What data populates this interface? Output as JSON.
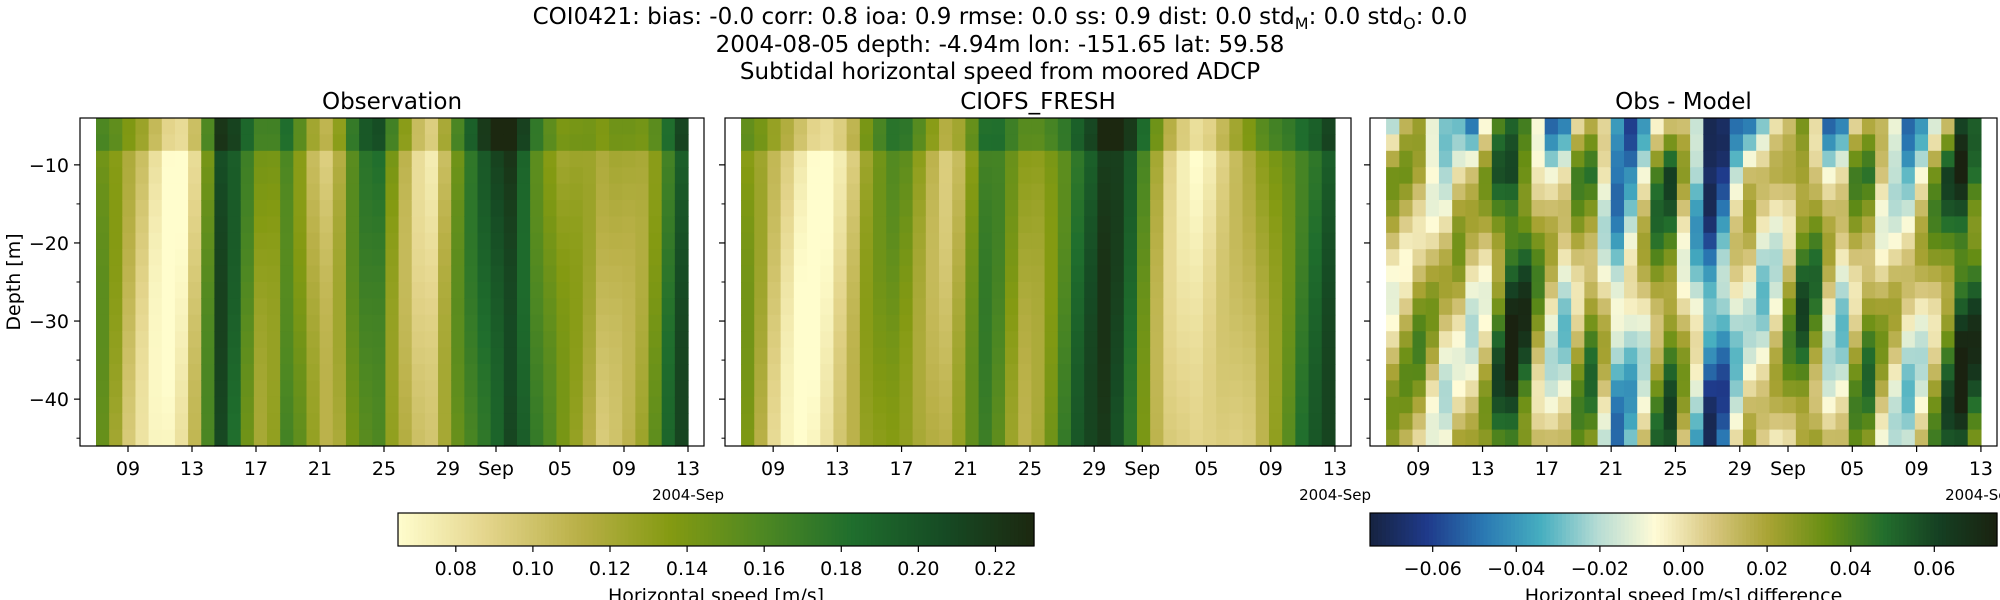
{
  "figure": {
    "title_line1": "COI0421: bias: -0.0  corr: 0.8  ioa: 0.9  rmse: 0.0  ss: 0.9  dist: 0.0  std",
    "title_sub_m": "M",
    "title_mid": ": 0.0  std",
    "title_sub_o": "O",
    "title_end": ": 0.0",
    "title_line2": "2004-08-05 depth: -4.94m lon: -151.65 lat: 59.58",
    "title_line3": "Subtidal horizontal speed from moored ADCP"
  },
  "chart_data": [
    {
      "type": "heatmap",
      "title": "Observation",
      "ylabel": "Depth [m]",
      "xlabel": "",
      "x_start": "2004-08-07",
      "x_end": "2004-09-13",
      "xlim": [
        "2004-08-06",
        "2004-09-14"
      ],
      "ylim": [
        -46,
        -4
      ],
      "x_tick_labels": [
        "09",
        "13",
        "17",
        "21",
        "25",
        "29",
        "Sep",
        "05",
        "09",
        "13"
      ],
      "x_offset_label": "2004-Sep",
      "y_ticks": [
        -10,
        -20,
        -30,
        -40
      ],
      "colormap": "speed",
      "vmin": 0.065,
      "vmax": 0.23,
      "colorbar": "left",
      "column_means": [
        0.14,
        0.12,
        0.1,
        0.09,
        0.08,
        0.075,
        0.08,
        0.1,
        0.15,
        0.2,
        0.18,
        0.15,
        0.13,
        0.14,
        0.17,
        0.15,
        0.12,
        0.1,
        0.11,
        0.14,
        0.16,
        0.17,
        0.14,
        0.12,
        0.1,
        0.09,
        0.11,
        0.14,
        0.16,
        0.18,
        0.2,
        0.22,
        0.2,
        0.17,
        0.15,
        0.13,
        0.12,
        0.11,
        0.1,
        0.11,
        0.12,
        0.13,
        0.15,
        0.18,
        0.2
      ]
    },
    {
      "type": "heatmap",
      "title": "CIOFS_FRESH",
      "xlabel": "",
      "x_start": "2004-08-07",
      "x_end": "2004-09-13",
      "xlim": [
        "2004-08-06",
        "2004-09-14"
      ],
      "ylim": [
        -46,
        -4
      ],
      "x_tick_labels": [
        "09",
        "13",
        "17",
        "21",
        "25",
        "29",
        "Sep",
        "05",
        "09",
        "13"
      ],
      "x_offset_label": "2004-Sep",
      "colormap": "speed",
      "vmin": 0.065,
      "vmax": 0.23,
      "colorbar": "left",
      "column_means": [
        0.13,
        0.11,
        0.09,
        0.08,
        0.075,
        0.075,
        0.08,
        0.09,
        0.1,
        0.12,
        0.13,
        0.14,
        0.14,
        0.13,
        0.12,
        0.11,
        0.12,
        0.14,
        0.16,
        0.15,
        0.13,
        0.12,
        0.13,
        0.15,
        0.17,
        0.19,
        0.2,
        0.21,
        0.2,
        0.18,
        0.15,
        0.12,
        0.1,
        0.09,
        0.08,
        0.08,
        0.085,
        0.09,
        0.1,
        0.12,
        0.14,
        0.16,
        0.18,
        0.19,
        0.2
      ]
    },
    {
      "type": "heatmap",
      "title": "Obs - Model",
      "xlabel": "",
      "x_start": "2004-08-07",
      "x_end": "2004-09-13",
      "xlim": [
        "2004-08-06",
        "2004-09-14"
      ],
      "ylim": [
        -46,
        -4
      ],
      "x_tick_labels": [
        "09",
        "13",
        "17",
        "21",
        "25",
        "29",
        "Sep",
        "05",
        "09",
        "13"
      ],
      "x_offset_label": "2004-Sep",
      "colormap": "diff",
      "vmin": -0.075,
      "vmax": 0.075,
      "colorbar": "right",
      "column_means": [
        0.01,
        0.015,
        0.02,
        0.01,
        0.0,
        0.01,
        0.0,
        0.01,
        0.04,
        0.06,
        0.05,
        0.02,
        0.0,
        -0.01,
        0.02,
        0.03,
        0.0,
        -0.03,
        -0.02,
        0.0,
        0.03,
        0.04,
        0.01,
        -0.02,
        -0.05,
        -0.04,
        -0.01,
        0.0,
        -0.01,
        0.0,
        0.02,
        0.04,
        0.03,
        0.0,
        -0.01,
        0.02,
        0.03,
        0.01,
        0.0,
        -0.01,
        0.0,
        0.02,
        0.04,
        0.06,
        0.05
      ]
    }
  ],
  "colorbars": {
    "left": {
      "label": "Horizontal speed [m/s]",
      "vmin": 0.065,
      "vmax": 0.23,
      "ticks": [
        0.08,
        0.1,
        0.12,
        0.14,
        0.16,
        0.18,
        0.2,
        0.22
      ],
      "tick_labels": [
        "0.08",
        "0.10",
        "0.12",
        "0.14",
        "0.16",
        "0.18",
        "0.20",
        "0.22"
      ]
    },
    "right": {
      "label": "Horizontal speed [m/s] difference",
      "vmin": -0.075,
      "vmax": 0.075,
      "ticks": [
        -0.06,
        -0.04,
        -0.02,
        0.0,
        0.02,
        0.04,
        0.06
      ],
      "tick_labels": [
        "−0.06",
        "−0.04",
        "−0.02",
        "0.00",
        "0.02",
        "0.04",
        "0.06"
      ]
    }
  },
  "colors": {
    "speed_colormap": [
      "#fffdcd",
      "#e3d48a",
      "#b9b047",
      "#849a12",
      "#4e8822",
      "#1f6e2d",
      "#164b24",
      "#1c2810"
    ],
    "diff_colormap": [
      "#162340",
      "#1f3a8a",
      "#2a79b3",
      "#46aec0",
      "#b6dcd4",
      "#fffbd6",
      "#d8c780",
      "#a8a333",
      "#678e13",
      "#236f2d",
      "#153f22",
      "#1a2210"
    ]
  }
}
